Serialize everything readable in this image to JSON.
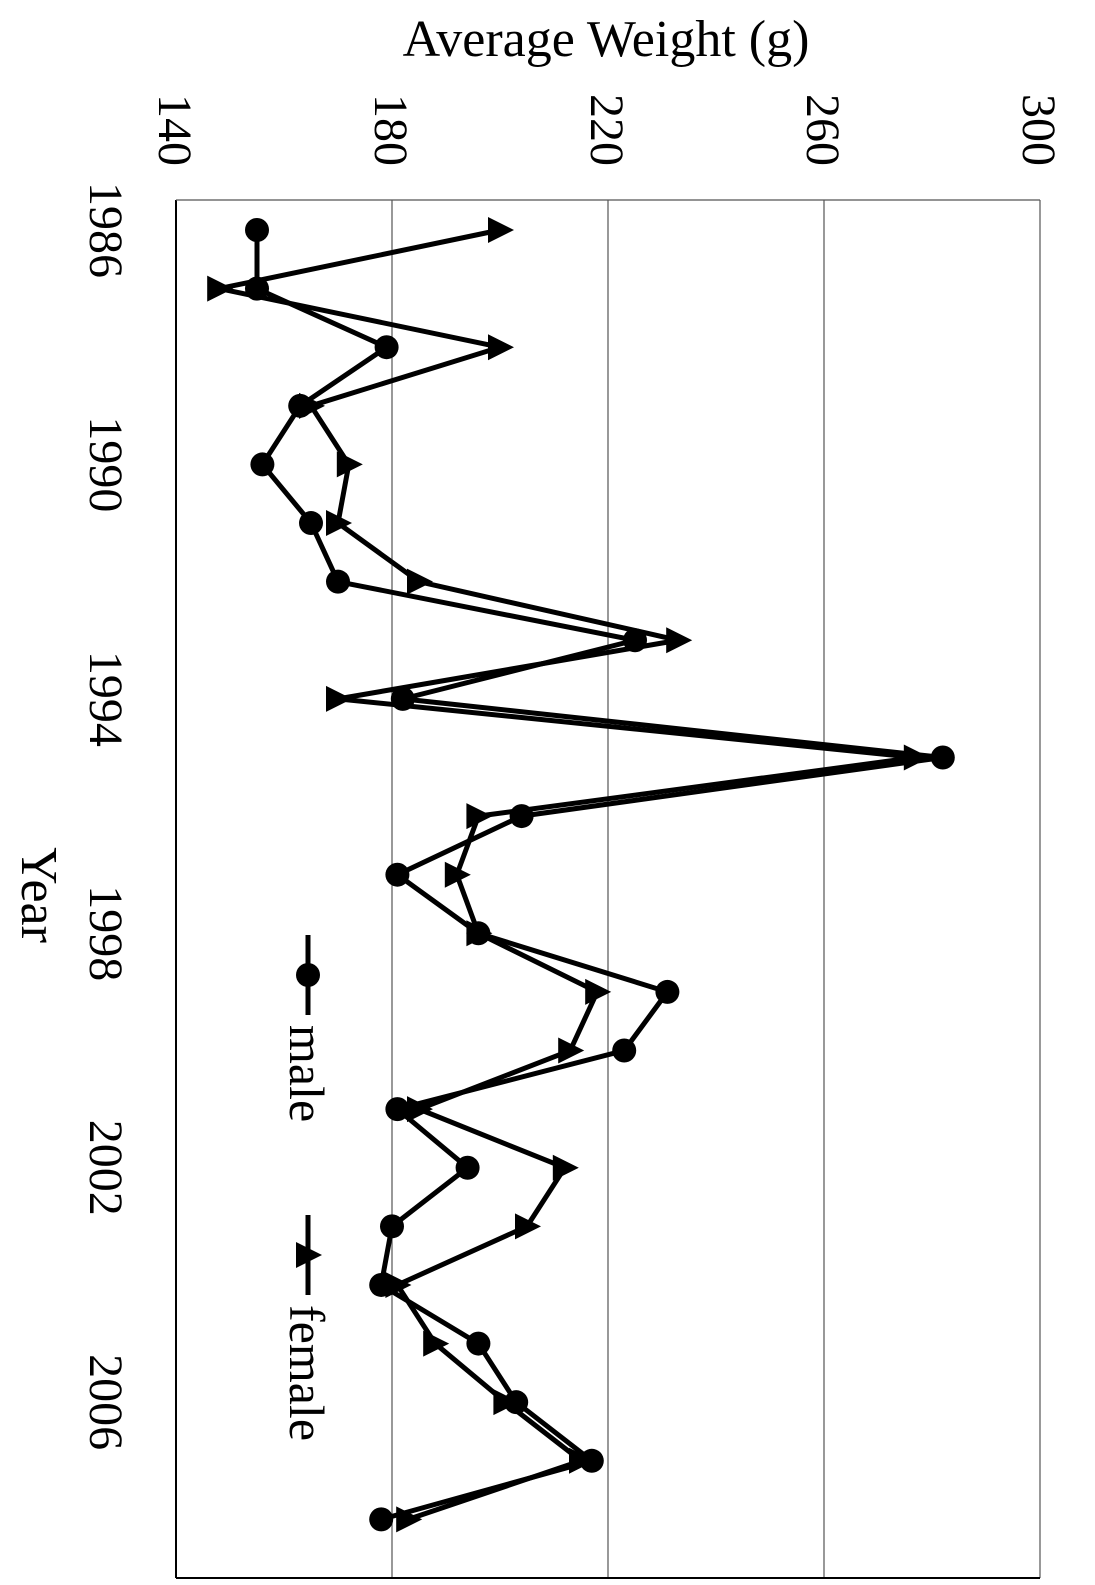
{
  "chart_data": {
    "type": "line",
    "orientation": "rotated 90° clockwise",
    "title": "",
    "xlabel": "Year",
    "ylabel": "Average Weight (g)",
    "ylim": [
      140,
      300
    ],
    "yticks": [
      "140",
      "180",
      "220",
      "260",
      "300"
    ],
    "xlim": [
      1986,
      2009
    ],
    "xticks": [
      "1986",
      "1990",
      "1994",
      "1998",
      "2002",
      "2006"
    ],
    "grid": "major y gridlines",
    "legend_position": "inside, lower-right (rotated)",
    "series": [
      {
        "name": "male",
        "marker": "circle",
        "x": [
          1986,
          1987,
          1988,
          1989,
          1990,
          1991,
          1992,
          1993,
          1994,
          1995,
          1996,
          1997,
          1998,
          1999,
          2000,
          2001,
          2002,
          2003,
          2004,
          2005,
          2006,
          2007,
          2008
        ],
        "y": [
          155,
          155,
          179,
          163,
          156,
          165,
          170,
          225,
          182,
          282,
          204,
          181,
          196,
          231,
          223,
          181,
          194,
          180,
          178,
          196,
          203,
          217,
          178
        ]
      },
      {
        "name": "female",
        "marker": "triangle",
        "x": [
          1986,
          1987,
          1988,
          1989,
          1990,
          1991,
          1992,
          1993,
          1994,
          1995,
          1996,
          1997,
          1998,
          1999,
          2000,
          2001,
          2002,
          2003,
          2004,
          2005,
          2006,
          2007,
          2008
        ],
        "y": [
          200,
          148,
          200,
          165,
          172,
          170,
          185,
          233,
          170,
          277,
          196,
          192,
          196,
          218,
          213,
          185,
          212,
          205,
          181,
          188,
          201,
          215,
          183
        ]
      }
    ]
  }
}
